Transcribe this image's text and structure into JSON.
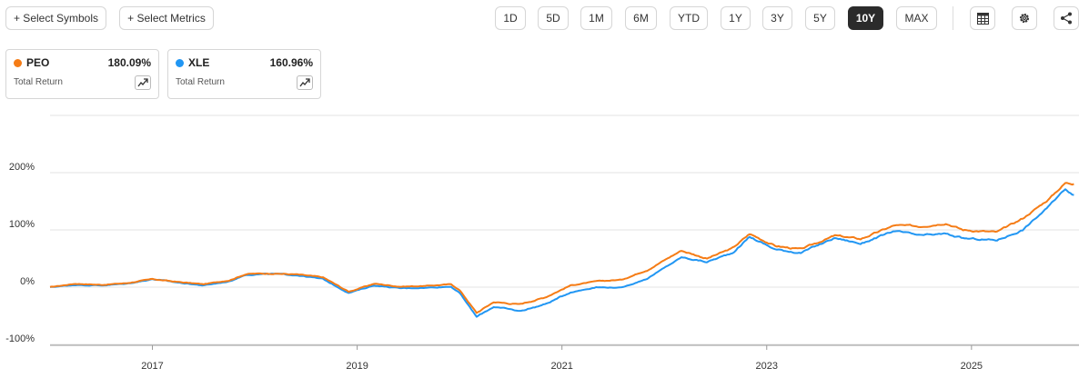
{
  "toolbar": {
    "select_symbols": "+ Select Symbols",
    "select_metrics": "+ Select Metrics",
    "ranges": [
      "1D",
      "5D",
      "1M",
      "6M",
      "YTD",
      "1Y",
      "3Y",
      "5Y",
      "10Y",
      "MAX"
    ],
    "active_range": "10Y",
    "icons": [
      "table-icon",
      "gear-icon",
      "share-icon"
    ]
  },
  "legend": [
    {
      "symbol": "PEO",
      "value": "180.09%",
      "metric": "Total Return",
      "color": "#f57c16"
    },
    {
      "symbol": "XLE",
      "value": "160.96%",
      "metric": "Total Return",
      "color": "#2196f3"
    }
  ],
  "chart_data": {
    "type": "line",
    "yticks": [
      "200%",
      "100%",
      "0%",
      "-100%"
    ],
    "xticks": [
      "2017",
      "2019",
      "2021",
      "2023",
      "2025"
    ],
    "ylim": [
      -100,
      200
    ],
    "series": [
      {
        "name": "PEO",
        "color": "#f57c16",
        "points": [
          [
            "2016-01",
            0
          ],
          [
            "2016-04",
            6
          ],
          [
            "2016-07",
            4
          ],
          [
            "2016-10",
            7
          ],
          [
            "2017-01",
            14
          ],
          [
            "2017-04",
            9
          ],
          [
            "2017-07",
            5
          ],
          [
            "2017-10",
            12
          ],
          [
            "2017-12",
            23
          ],
          [
            "2018-03",
            24
          ],
          [
            "2018-06",
            22
          ],
          [
            "2018-09",
            17
          ],
          [
            "2018-12",
            -8
          ],
          [
            "2019-03",
            6
          ],
          [
            "2019-06",
            1
          ],
          [
            "2019-09",
            2
          ],
          [
            "2019-12",
            5
          ],
          [
            "2020-01",
            -5
          ],
          [
            "2020-03",
            -45
          ],
          [
            "2020-05",
            -26
          ],
          [
            "2020-08",
            -30
          ],
          [
            "2020-11",
            -18
          ],
          [
            "2021-02",
            3
          ],
          [
            "2021-05",
            10
          ],
          [
            "2021-08",
            13
          ],
          [
            "2021-11",
            30
          ],
          [
            "2022-03",
            64
          ],
          [
            "2022-06",
            50
          ],
          [
            "2022-09",
            68
          ],
          [
            "2022-11",
            93
          ],
          [
            "2023-02",
            72
          ],
          [
            "2023-05",
            66
          ],
          [
            "2023-09",
            90
          ],
          [
            "2023-12",
            84
          ],
          [
            "2024-04",
            108
          ],
          [
            "2024-07",
            106
          ],
          [
            "2024-10",
            112
          ],
          [
            "2024-12",
            100
          ],
          [
            "2025-04",
            96
          ],
          [
            "2025-07",
            120
          ],
          [
            "2025-10",
            153
          ],
          [
            "2025-12",
            182
          ],
          [
            "2026-01",
            180.09
          ]
        ]
      },
      {
        "name": "XLE",
        "color": "#2196f3",
        "points": [
          [
            "2016-01",
            0
          ],
          [
            "2016-04",
            4
          ],
          [
            "2016-07",
            3
          ],
          [
            "2016-10",
            6
          ],
          [
            "2017-01",
            14
          ],
          [
            "2017-04",
            8
          ],
          [
            "2017-07",
            3
          ],
          [
            "2017-10",
            10
          ],
          [
            "2017-12",
            22
          ],
          [
            "2018-03",
            23
          ],
          [
            "2018-06",
            21
          ],
          [
            "2018-09",
            14
          ],
          [
            "2018-12",
            -10
          ],
          [
            "2019-03",
            3
          ],
          [
            "2019-06",
            -2
          ],
          [
            "2019-09",
            -1
          ],
          [
            "2019-12",
            1
          ],
          [
            "2020-01",
            -10
          ],
          [
            "2020-03",
            -52
          ],
          [
            "2020-05",
            -34
          ],
          [
            "2020-08",
            -42
          ],
          [
            "2020-11",
            -30
          ],
          [
            "2021-02",
            -9
          ],
          [
            "2021-05",
            0
          ],
          [
            "2021-08",
            -1
          ],
          [
            "2021-11",
            15
          ],
          [
            "2022-03",
            52
          ],
          [
            "2022-06",
            44
          ],
          [
            "2022-09",
            60
          ],
          [
            "2022-11",
            88
          ],
          [
            "2023-02",
            66
          ],
          [
            "2023-05",
            60
          ],
          [
            "2023-09",
            86
          ],
          [
            "2023-12",
            76
          ],
          [
            "2024-04",
            98
          ],
          [
            "2024-07",
            90
          ],
          [
            "2024-10",
            93
          ],
          [
            "2024-12",
            85
          ],
          [
            "2025-04",
            82
          ],
          [
            "2025-07",
            100
          ],
          [
            "2025-10",
            140
          ],
          [
            "2025-12",
            172
          ],
          [
            "2026-01",
            160.96
          ]
        ]
      }
    ]
  }
}
